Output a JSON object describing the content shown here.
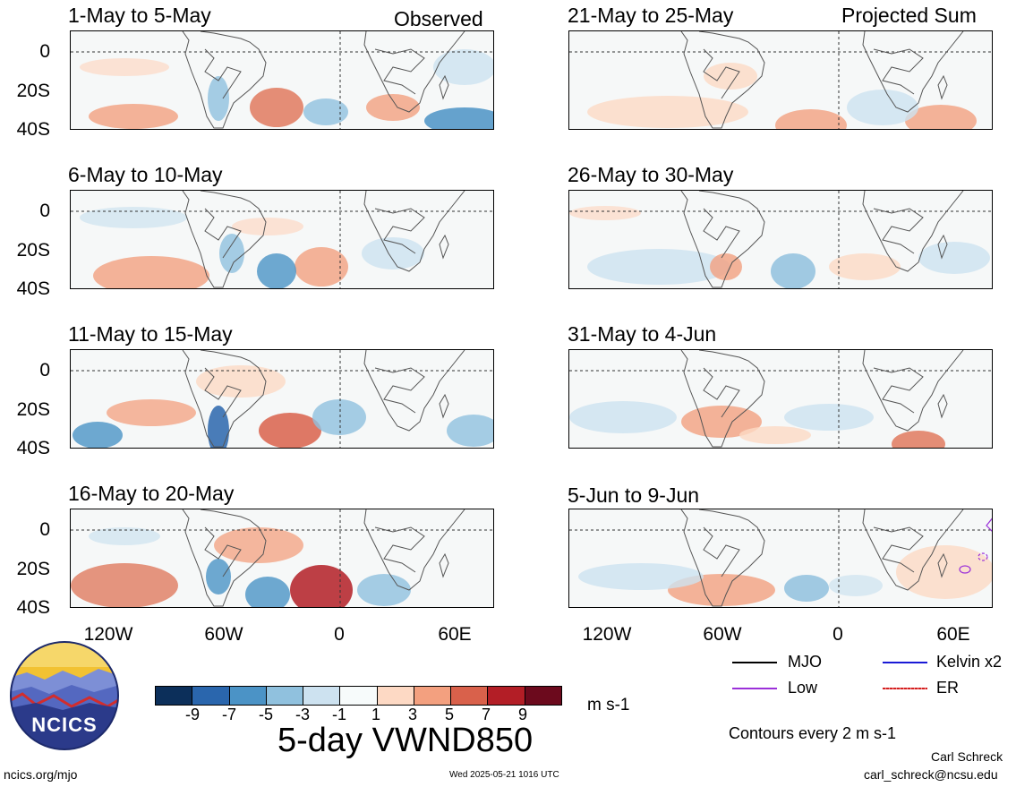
{
  "header": {
    "left_label": "Observed",
    "right_label": "Projected Sum"
  },
  "panels": {
    "left": [
      {
        "title": "1-May to 5-May"
      },
      {
        "title": "6-May to 10-May"
      },
      {
        "title": "11-May to 15-May"
      },
      {
        "title": "16-May to 20-May"
      }
    ],
    "right": [
      {
        "title": "21-May to 25-May"
      },
      {
        "title": "26-May to 30-May"
      },
      {
        "title": "31-May to 4-Jun"
      },
      {
        "title": "5-Jun to 9-Jun"
      }
    ]
  },
  "axes": {
    "y_ticks": [
      "0",
      "20S",
      "40S"
    ],
    "x_ticks": [
      "120W",
      "60W",
      "0",
      "60E"
    ]
  },
  "colorbar": {
    "ticks": [
      "-9",
      "-7",
      "-5",
      "-3",
      "-1",
      "1",
      "3",
      "5",
      "7",
      "9"
    ],
    "units": "m s-1",
    "colors": [
      "#0c2f5a",
      "#2a66ad",
      "#4b93c6",
      "#90c1de",
      "#cde2f0",
      "#f7fbfb",
      "#fdd9c4",
      "#f3a07f",
      "#d9614b",
      "#b31e26",
      "#6c0a1d"
    ]
  },
  "main_title": "5-day VWND850",
  "legend": {
    "items": [
      {
        "label": "MJO",
        "color": "#000000"
      },
      {
        "label": "Kelvin x2",
        "color": "#1a1ad6"
      },
      {
        "label": "Low",
        "color": "#9b30d9"
      },
      {
        "label": "ER",
        "color": "#d32020"
      }
    ],
    "contour_note": "Contours every 2 m s-1"
  },
  "logo": {
    "text": "NCICS"
  },
  "footer": {
    "url": "ncics.org/mjo",
    "timestamp": "Wed 2025-05-21 1016 UTC",
    "author": "Carl Schreck",
    "email": "carl_schreck@ncsu.edu"
  }
}
